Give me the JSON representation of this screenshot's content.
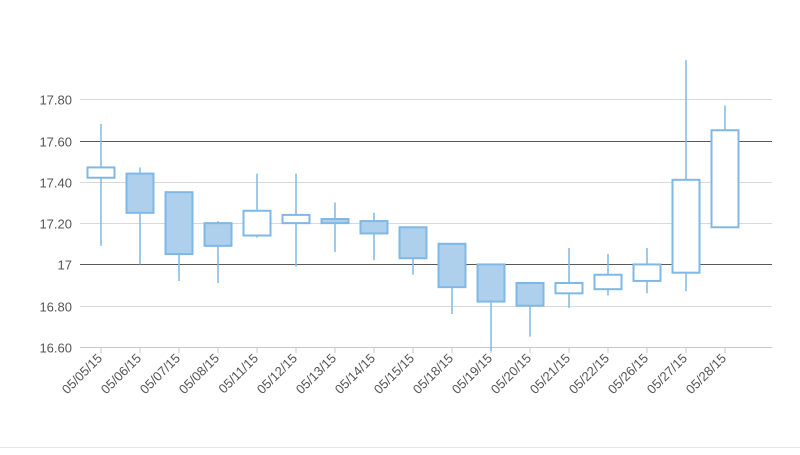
{
  "chart_data": {
    "type": "candlestick",
    "title": "",
    "xlabel": "",
    "ylabel": "",
    "ylim": [
      16.6,
      18.0
    ],
    "grid": true,
    "legend": "none",
    "yticks": [
      16.6,
      16.8,
      17.0,
      17.2,
      17.4,
      17.6,
      17.8
    ],
    "ytick_labels": [
      "16.60",
      "16.80",
      "17",
      "17.20",
      "17.40",
      "17.60",
      "17.80"
    ],
    "categories": [
      "05/05/15",
      "05/06/15",
      "05/07/15",
      "05/08/15",
      "05/11/15",
      "05/12/15",
      "05/13/15",
      "05/14/15",
      "05/15/15",
      "05/18/15",
      "05/19/15",
      "05/20/15",
      "05/21/15",
      "05/22/15",
      "05/26/15",
      "05/27/15",
      "05/28/15"
    ],
    "series": [
      {
        "open": [
          17.42,
          17.44,
          17.35,
          17.2,
          17.14,
          17.2,
          17.22,
          17.21,
          17.18,
          17.1,
          17.0,
          16.91,
          16.86,
          16.88,
          16.92,
          16.96,
          17.18
        ],
        "high": [
          17.68,
          17.47,
          17.35,
          17.21,
          17.44,
          17.44,
          17.3,
          17.25,
          17.18,
          17.1,
          17.0,
          16.91,
          17.08,
          17.05,
          17.08,
          17.99,
          17.77
        ],
        "low": [
          17.09,
          17.0,
          16.92,
          16.91,
          17.13,
          16.99,
          17.06,
          17.02,
          16.95,
          16.76,
          16.58,
          16.65,
          16.79,
          16.85,
          16.86,
          16.87,
          17.18
        ],
        "close": [
          17.47,
          17.25,
          17.05,
          17.09,
          17.26,
          17.24,
          17.2,
          17.15,
          17.03,
          16.89,
          16.82,
          16.8,
          16.91,
          16.95,
          17.0,
          17.41,
          17.65
        ]
      }
    ],
    "colors": {
      "candle": "#7fb8e6",
      "falling_fill": "#aed0ec",
      "rising_fill": "#ffffff",
      "grid": "#d9d9d9",
      "strong_grid": "#5a5a5a",
      "axis_text": "#555555"
    }
  }
}
